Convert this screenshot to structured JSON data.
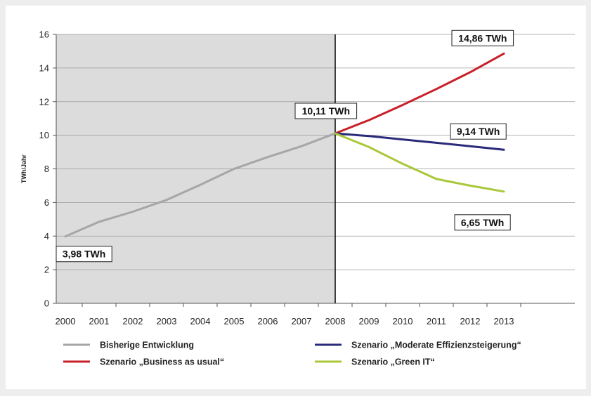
{
  "chart_data": {
    "type": "line",
    "title": "",
    "xlabel": "",
    "ylabel": "TWh/Jahr",
    "x": [
      2000,
      2001,
      2002,
      2003,
      2004,
      2005,
      2006,
      2007,
      2008,
      2009,
      2010,
      2011,
      2012,
      2013
    ],
    "xlim": [
      2000,
      2013
    ],
    "ylim": [
      0,
      16
    ],
    "yticks": [
      0,
      2,
      4,
      6,
      8,
      10,
      12,
      14,
      16
    ],
    "grid": "horizontal",
    "shaded_range": [
      2000,
      2008
    ],
    "divider_x": 2008,
    "legend_position": "bottom",
    "series": [
      {
        "name": "Bisherige Entwicklung",
        "color": "#a6a6a6",
        "x": [
          2000,
          2001,
          2002,
          2003,
          2004,
          2005,
          2006,
          2007,
          2008
        ],
        "values": [
          3.98,
          4.85,
          5.45,
          6.15,
          7.05,
          8.0,
          8.7,
          9.35,
          10.11
        ]
      },
      {
        "name": "Szenario „Business as usual“",
        "color": "#c8202a",
        "x": [
          2008,
          2009,
          2010,
          2011,
          2012,
          2013
        ],
        "values": [
          10.11,
          10.9,
          11.8,
          12.75,
          13.75,
          14.86
        ]
      },
      {
        "name": "Szenario „Moderate Effizienzsteigerung“",
        "color": "#2a2a7a",
        "x": [
          2008,
          2009,
          2010,
          2011,
          2012,
          2013
        ],
        "values": [
          10.11,
          9.95,
          9.75,
          9.55,
          9.35,
          9.14
        ]
      },
      {
        "name": "Szenario „Green IT“",
        "color": "#a8c83a",
        "x": [
          2008,
          2009,
          2010,
          2011,
          2012,
          2013
        ],
        "values": [
          10.11,
          9.3,
          8.3,
          7.4,
          7.0,
          6.65
        ]
      }
    ],
    "annotations": [
      {
        "text": "3,98 TWh",
        "x": 2000,
        "y": 3.98
      },
      {
        "text": "10,11 TWh",
        "x": 2008,
        "y": 10.11
      },
      {
        "text": "14,86 TWh",
        "x": 2013,
        "y": 14.86
      },
      {
        "text": "9,14 TWh",
        "x": 2013,
        "y": 9.14
      },
      {
        "text": "6,65 TWh",
        "x": 2013,
        "y": 6.65
      }
    ]
  }
}
